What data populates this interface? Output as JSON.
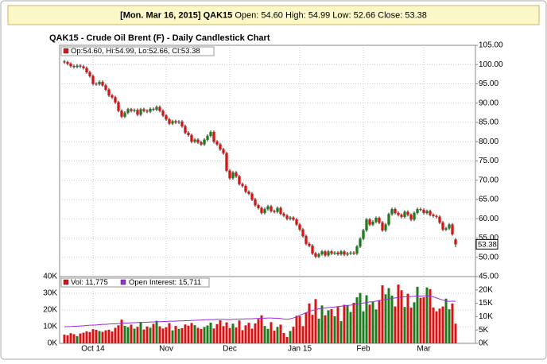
{
  "header": {
    "date": "[Mon. Mar 16, 2015]",
    "symbol": "QAK15",
    "text": "Open: 54.60 High: 54.99 Low: 52.66 Close: 53.38"
  },
  "chart_data": [
    {
      "type": "candlestick",
      "title": "QAK15 - Crude Oil Brent (F) - Daily Candlestick Chart",
      "legend": "Op:54.60, Hi:54.99, Lo:52.66, Cl:53.38",
      "up_color": "#1e7b1e",
      "down_color": "#d41515",
      "categories": [
        null,
        null,
        null,
        null,
        null,
        null,
        null,
        null,
        null,
        "Oct 14",
        null,
        null,
        null,
        null,
        null,
        null,
        null,
        null,
        null,
        null,
        null,
        null,
        null,
        null,
        null,
        null,
        null,
        null,
        null,
        null,
        null,
        null,
        "Nov",
        null,
        null,
        null,
        null,
        null,
        null,
        null,
        null,
        null,
        null,
        null,
        null,
        null,
        null,
        null,
        null,
        null,
        null,
        null,
        "Dec",
        null,
        null,
        null,
        null,
        null,
        null,
        null,
        null,
        null,
        null,
        null,
        null,
        null,
        null,
        null,
        null,
        null,
        null,
        null,
        null,
        null,
        "Jan 15",
        null,
        null,
        null,
        null,
        null,
        null,
        null,
        null,
        null,
        null,
        null,
        null,
        null,
        null,
        null,
        null,
        null,
        null,
        null,
        "Feb",
        null,
        null,
        null,
        null,
        null,
        null,
        null,
        null,
        null,
        null,
        null,
        null,
        null,
        null,
        null,
        null,
        null,
        null,
        "Mar",
        null,
        null,
        null,
        null,
        null,
        null,
        null,
        null,
        null,
        null
      ],
      "open": [
        100.8,
        100.6,
        100.2,
        99.6,
        99.4,
        99.7,
        99.5,
        99.1,
        98.0,
        97.0,
        95.0,
        94.9,
        95.5,
        94.6,
        93.5,
        92.0,
        91.5,
        90.2,
        88.0,
        86.5,
        87.5,
        88.4,
        88.0,
        88.2,
        87.0,
        88.4,
        88.0,
        87.8,
        88.5,
        88.3,
        89.0,
        88.0,
        86.8,
        85.8,
        84.7,
        85.3,
        85.0,
        85.2,
        84.0,
        82.3,
        81.7,
        80.0,
        80.5,
        79.8,
        79.3,
        80.5,
        81.5,
        82.5,
        80.0,
        79.3,
        78.0,
        77.0,
        72.5,
        70.5,
        72.0,
        71.0,
        69.0,
        68.5,
        67.0,
        66.5,
        65.0,
        63.5,
        62.8,
        61.5,
        62.5,
        63.2,
        62.0,
        61.8,
        62.8,
        61.3,
        60.8,
        60.0,
        60.3,
        59.8,
        58.5,
        57.2,
        55.5,
        53.5,
        53.0,
        51.0,
        50.2,
        50.8,
        51.5,
        50.5,
        51.5,
        51.0,
        51.2,
        50.8,
        51.5,
        50.7,
        51.0,
        51.2,
        51.0,
        52.8,
        54.8,
        57.0,
        59.8,
        58.5,
        59.2,
        60.2,
        59.0,
        57.0,
        58.5,
        61.2,
        62.5,
        61.5,
        61.0,
        60.5,
        61.8,
        61.0,
        59.8,
        61.5,
        62.5,
        62.3,
        61.5,
        62.0,
        61.0,
        60.7,
        60.5,
        59.0,
        57.2,
        57.5,
        58.5,
        54.6
      ],
      "high": [
        101.2,
        101.0,
        100.6,
        100.0,
        100.1,
        100.1,
        99.9,
        99.5,
        98.4,
        97.4,
        95.4,
        95.9,
        95.9,
        95.0,
        93.9,
        92.4,
        91.9,
        90.6,
        88.4,
        87.9,
        88.8,
        88.8,
        88.6,
        88.6,
        88.8,
        88.8,
        88.4,
        88.9,
        88.9,
        89.4,
        89.4,
        88.4,
        87.2,
        86.2,
        85.7,
        85.7,
        85.6,
        85.6,
        84.4,
        82.7,
        82.1,
        80.9,
        80.9,
        80.2,
        80.9,
        81.9,
        82.9,
        82.9,
        80.4,
        79.7,
        78.4,
        77.4,
        72.9,
        72.4,
        72.4,
        71.4,
        69.4,
        68.9,
        67.4,
        66.9,
        65.4,
        63.9,
        63.2,
        62.9,
        63.6,
        63.6,
        62.4,
        63.2,
        63.2,
        61.7,
        61.2,
        60.7,
        60.7,
        60.2,
        58.9,
        57.6,
        55.9,
        53.9,
        53.4,
        51.4,
        51.2,
        51.9,
        51.9,
        51.9,
        51.9,
        51.6,
        51.6,
        51.9,
        51.9,
        51.4,
        51.6,
        51.6,
        53.2,
        55.2,
        57.4,
        60.2,
        60.2,
        59.6,
        60.6,
        60.6,
        59.4,
        58.9,
        61.6,
        62.9,
        62.9,
        61.9,
        61.4,
        62.2,
        62.2,
        61.4,
        61.9,
        62.9,
        62.9,
        62.7,
        62.4,
        62.4,
        61.4,
        61.1,
        60.9,
        59.4,
        57.9,
        58.9,
        58.9,
        54.99
      ],
      "low": [
        100.2,
        99.8,
        99.2,
        99.0,
        99.0,
        99.1,
        98.7,
        97.6,
        96.6,
        94.6,
        94.5,
        94.5,
        94.2,
        93.1,
        91.6,
        91.1,
        89.8,
        87.6,
        86.1,
        86.1,
        87.1,
        87.6,
        87.6,
        86.6,
        86.6,
        87.6,
        87.4,
        87.4,
        87.9,
        87.9,
        87.6,
        86.4,
        85.4,
        84.3,
        84.3,
        84.6,
        84.6,
        83.6,
        81.9,
        81.3,
        79.6,
        79.6,
        79.4,
        78.9,
        78.9,
        80.1,
        81.1,
        79.6,
        78.9,
        77.6,
        76.6,
        72.1,
        70.1,
        70.1,
        70.6,
        68.6,
        68.1,
        66.6,
        66.1,
        64.6,
        63.1,
        62.4,
        61.1,
        61.1,
        62.1,
        61.6,
        61.4,
        61.4,
        60.9,
        60.4,
        59.6,
        59.6,
        59.4,
        58.1,
        56.8,
        55.1,
        53.1,
        52.6,
        50.6,
        49.8,
        49.8,
        50.4,
        50.1,
        50.1,
        50.6,
        50.6,
        50.4,
        50.4,
        50.3,
        50.3,
        50.6,
        50.6,
        50.6,
        52.4,
        54.4,
        56.6,
        58.1,
        58.1,
        58.8,
        58.6,
        56.6,
        56.6,
        58.1,
        60.8,
        61.1,
        60.6,
        60.1,
        60.1,
        60.6,
        59.4,
        59.4,
        61.1,
        61.9,
        61.1,
        61.1,
        60.6,
        60.3,
        60.1,
        58.6,
        56.8,
        56.8,
        57.1,
        55.6,
        52.66
      ],
      "close": [
        100.6,
        100.2,
        99.6,
        99.4,
        99.7,
        99.5,
        99.1,
        98.0,
        97.0,
        95.0,
        94.9,
        95.5,
        94.6,
        93.5,
        92.0,
        91.5,
        90.2,
        88.0,
        86.5,
        87.5,
        88.4,
        88.0,
        88.2,
        87.0,
        88.4,
        88.0,
        87.8,
        88.5,
        88.3,
        89.0,
        88.0,
        86.8,
        85.8,
        84.7,
        85.3,
        85.0,
        85.2,
        84.0,
        82.3,
        81.7,
        80.0,
        80.5,
        79.8,
        79.3,
        80.5,
        81.5,
        82.5,
        80.0,
        79.3,
        78.0,
        77.0,
        72.5,
        70.5,
        72.0,
        71.0,
        69.0,
        68.5,
        67.0,
        66.5,
        65.0,
        63.5,
        62.8,
        61.5,
        62.5,
        63.2,
        62.0,
        61.8,
        62.8,
        61.3,
        60.8,
        60.0,
        60.3,
        59.8,
        58.5,
        57.2,
        55.5,
        53.5,
        53.0,
        51.0,
        50.2,
        50.8,
        51.5,
        50.5,
        51.5,
        51.0,
        51.2,
        50.8,
        51.5,
        50.7,
        51.0,
        51.2,
        51.0,
        52.8,
        54.8,
        57.0,
        59.8,
        58.5,
        59.2,
        60.2,
        59.0,
        57.0,
        58.5,
        61.2,
        62.5,
        61.5,
        61.0,
        60.5,
        61.8,
        61.0,
        59.8,
        61.5,
        62.5,
        62.3,
        61.5,
        62.0,
        61.0,
        60.7,
        60.5,
        59.0,
        57.2,
        57.5,
        58.5,
        56.0,
        53.38
      ],
      "ylim": [
        45,
        105
      ],
      "yticks": [
        {
          "value": 45,
          "label": "45.00"
        },
        {
          "value": 50,
          "label": "50.00"
        },
        {
          "value": 55,
          "label": "55.00"
        },
        {
          "value": 60,
          "label": "60.00"
        },
        {
          "value": 65,
          "label": "65.00"
        },
        {
          "value": 70,
          "label": "70.00"
        },
        {
          "value": 75,
          "label": "75.00"
        },
        {
          "value": 80,
          "label": "80.00"
        },
        {
          "value": 85,
          "label": "85.00"
        },
        {
          "value": 90,
          "label": "90.00"
        },
        {
          "value": 95,
          "label": "95.00"
        },
        {
          "value": 100,
          "label": "100.00"
        },
        {
          "value": 105,
          "label": "105.00"
        }
      ],
      "grid": true
    },
    {
      "type": "bar",
      "series": [
        {
          "name": "Vol: 11,775",
          "color": "#d41515",
          "values": [
            5200,
            4800,
            6100,
            5500,
            4300,
            5900,
            6400,
            7200,
            6800,
            8500,
            8100,
            7400,
            6900,
            7800,
            8200,
            7100,
            9300,
            10800,
            14200,
            10500,
            9700,
            11200,
            8800,
            9900,
            12800,
            8300,
            10100,
            9400,
            11700,
            13500,
            10200,
            8900,
            9600,
            12100,
            7800,
            10400,
            8700,
            9100,
            11300,
            10600,
            12200,
            10900,
            9300,
            8600,
            9800,
            10700,
            12400,
            8900,
            11500,
            13800,
            10300,
            12600,
            9200,
            11800,
            9500,
            13700,
            7900,
            10800,
            12300,
            8800,
            11900,
            14600,
            16800,
            10400,
            8700,
            12700,
            7600,
            9800,
            11200,
            6200,
            3800,
            7400,
            9900,
            16500,
            16200,
            10300,
            18400,
            23900,
            17100,
            26500,
            14800,
            22700,
            16800,
            19800,
            20500,
            16200,
            21800,
            13300,
            23100,
            22800,
            18800,
            24300,
            27600,
            30200,
            19200,
            28800,
            23200,
            24800,
            20300,
            25900,
            34800,
            29400,
            33100,
            28600,
            22100,
            35200,
            31800,
            21800,
            29700,
            21400,
            24600,
            33900,
            27300,
            27600,
            33500,
            32500,
            21500,
            19200,
            20800,
            22100,
            26800,
            20400,
            23900,
            11775
          ]
        },
        {
          "name": "Open Interest: 15,711",
          "color": "#9b30d9",
          "type": "line",
          "axis": "y2",
          "values": [
            6200,
            6300,
            6300,
            6400,
            6400,
            6500,
            6600,
            6700,
            6800,
            6800,
            6900,
            7000,
            7100,
            7100,
            7200,
            7300,
            7300,
            7400,
            7500,
            7600,
            7600,
            7700,
            7700,
            7800,
            7800,
            7900,
            7900,
            8000,
            8000,
            8100,
            8100,
            8200,
            8200,
            8300,
            8300,
            8300,
            8400,
            8400,
            8500,
            8500,
            8600,
            8600,
            8700,
            8700,
            8800,
            8800,
            8900,
            8900,
            9000,
            9000,
            9000,
            8900,
            8900,
            9000,
            9000,
            9100,
            9100,
            9200,
            9200,
            9200,
            9300,
            9300,
            9400,
            9400,
            9500,
            9500,
            9400,
            9400,
            9300,
            9100,
            9000,
            9200,
            9500,
            9900,
            10500,
            11000,
            11500,
            12000,
            12300,
            12700,
            12900,
            13100,
            13200,
            13400,
            13500,
            13600,
            13800,
            13900,
            14100,
            14200,
            14300,
            14500,
            14700,
            14900,
            15100,
            15300,
            15500,
            15600,
            15800,
            16000,
            16200,
            16400,
            16600,
            16800,
            17000,
            17200,
            17300,
            17400,
            17500,
            17500,
            17600,
            17700,
            17700,
            17800,
            17800,
            17700,
            17400,
            17000,
            16600,
            16200,
            15900,
            15700,
            15800,
            15711
          ]
        }
      ],
      "ylim": [
        0,
        40000
      ],
      "yticks": [
        {
          "value": 0,
          "label": "0K"
        },
        {
          "value": 10000,
          "label": "10K"
        },
        {
          "value": 20000,
          "label": "20K"
        },
        {
          "value": 30000,
          "label": "30K"
        },
        {
          "value": 40000,
          "label": "40K"
        }
      ],
      "y2lim": [
        0,
        25000
      ],
      "y2ticks": [
        {
          "value": 0,
          "label": "0K"
        },
        {
          "value": 5000,
          "label": "5K"
        },
        {
          "value": 10000,
          "label": "10K"
        },
        {
          "value": 15000,
          "label": "15K"
        },
        {
          "value": 20000,
          "label": "20K"
        }
      ],
      "grid": true
    }
  ]
}
